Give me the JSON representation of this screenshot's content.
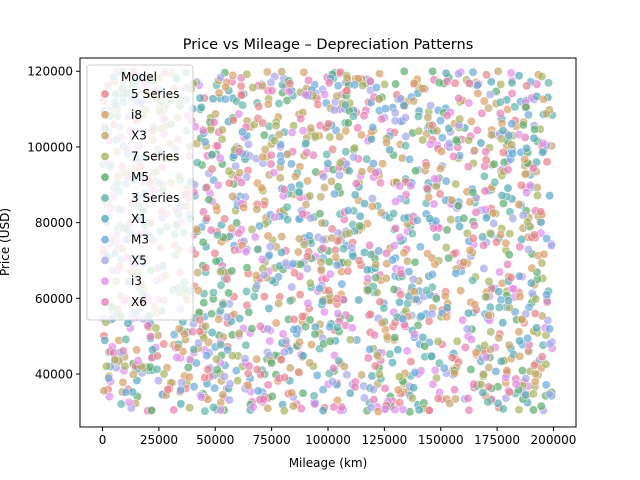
{
  "chart_data": {
    "type": "scatter",
    "title": "Price vs Mileage – Depreciation Patterns",
    "xlabel": "Mileage (km)",
    "ylabel": "Price (USD)",
    "xlim": [
      -10000,
      210000
    ],
    "ylim": [
      26000,
      123500
    ],
    "xticks": [
      0,
      25000,
      50000,
      75000,
      100000,
      125000,
      150000,
      175000,
      200000
    ],
    "xtick_labels": [
      "0",
      "25000",
      "50000",
      "75000",
      "100000",
      "125000",
      "150000",
      "175000",
      "200000"
    ],
    "yticks": [
      40000,
      60000,
      80000,
      100000,
      120000
    ],
    "ytick_labels": [
      "40000",
      "60000",
      "80000",
      "100000",
      "120000"
    ],
    "grid": false,
    "legend": {
      "title": "Model",
      "position": "top-left",
      "entries": [
        {
          "name": "5 Series",
          "color": "#e6818a"
        },
        {
          "name": "i8",
          "color": "#d99f66"
        },
        {
          "name": "X3",
          "color": "#c2a56b"
        },
        {
          "name": "7 Series",
          "color": "#a6b25f"
        },
        {
          "name": "M5",
          "color": "#5cad6f"
        },
        {
          "name": "3 Series",
          "color": "#5fb5a8"
        },
        {
          "name": "X1",
          "color": "#55aab8"
        },
        {
          "name": "M3",
          "color": "#6aaad8"
        },
        {
          "name": "X5",
          "color": "#a7a6e8"
        },
        {
          "name": "i3",
          "color": "#de8ee8"
        },
        {
          "name": "X6",
          "color": "#e67fb8"
        }
      ]
    },
    "series_distribution": {
      "x_range": [
        0,
        200000
      ],
      "y_range": [
        30000,
        120000
      ],
      "pattern": "points spread uniformly across the full range for every model, no visible depreciation trend",
      "point_opacity": 0.7
    }
  }
}
